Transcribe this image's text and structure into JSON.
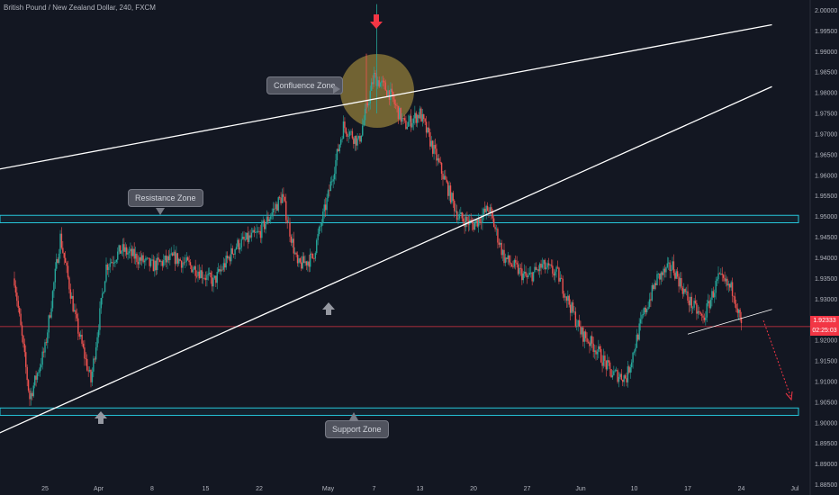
{
  "header": {
    "symbol_title": "British Pound / New Zealand Dollar, 240, FXCM"
  },
  "callouts": {
    "confluence": "Confluence Zone",
    "resistance": "Resistance Zone",
    "support": "Support Zone"
  },
  "price_tag": {
    "price": "1.92333",
    "countdown": "02:25:03"
  },
  "colors": {
    "background": "#131722",
    "bull": "#26a69a",
    "bear": "#ef5350",
    "zone": "#26c6da",
    "trendline": "#ffffff",
    "price_line": "#f23645"
  },
  "chart_data": {
    "type": "candlestick",
    "title": "British Pound / New Zealand Dollar, 240, FXCM",
    "ylim": [
      1.8825,
      2.0025
    ],
    "y_ticks": [
      2.0,
      1.995,
      1.99,
      1.985,
      1.98,
      1.975,
      1.97,
      1.965,
      1.96,
      1.955,
      1.95,
      1.945,
      1.94,
      1.935,
      1.93,
      1.925,
      1.92,
      1.915,
      1.91,
      1.905,
      1.9,
      1.895,
      1.89,
      1.885
    ],
    "x_ticks": [
      "25",
      "Apr",
      "8",
      "15",
      "22",
      "May",
      "7",
      "13",
      "20",
      "27",
      "Jun",
      "10",
      "17",
      "24",
      "Jul"
    ],
    "x_range": [
      "2019-03-21",
      "2019-07-01"
    ],
    "price_path": [
      [
        "2019-03-21",
        1.935
      ],
      [
        "2019-03-23",
        1.906
      ],
      [
        "2019-03-25",
        1.918
      ],
      [
        "2019-03-27",
        1.945
      ],
      [
        "2019-03-29",
        1.925
      ],
      [
        "2019-03-31",
        1.91
      ],
      [
        "2019-04-02",
        1.938
      ],
      [
        "2019-04-04",
        1.942
      ],
      [
        "2019-04-08",
        1.938
      ],
      [
        "2019-04-11",
        1.94
      ],
      [
        "2019-04-14",
        1.937
      ],
      [
        "2019-04-16",
        1.934
      ],
      [
        "2019-04-19",
        1.943
      ],
      [
        "2019-04-22",
        1.946
      ],
      [
        "2019-04-25",
        1.955
      ],
      [
        "2019-04-27",
        1.938
      ],
      [
        "2019-04-29",
        1.94
      ],
      [
        "2019-05-01",
        1.955
      ],
      [
        "2019-05-03",
        1.972
      ],
      [
        "2019-05-05",
        1.968
      ],
      [
        "2019-05-07",
        1.984
      ],
      [
        "2019-05-09",
        1.98
      ],
      [
        "2019-05-11",
        1.972
      ],
      [
        "2019-05-13",
        1.975
      ],
      [
        "2019-05-15",
        1.965
      ],
      [
        "2019-05-18",
        1.95
      ],
      [
        "2019-05-20",
        1.948
      ],
      [
        "2019-05-22",
        1.952
      ],
      [
        "2019-05-24",
        1.94
      ],
      [
        "2019-05-27",
        1.935
      ],
      [
        "2019-05-29",
        1.938
      ],
      [
        "2019-05-31",
        1.936
      ],
      [
        "2019-06-03",
        1.922
      ],
      [
        "2019-06-05",
        1.918
      ],
      [
        "2019-06-07",
        1.912
      ],
      [
        "2019-06-09",
        1.911
      ],
      [
        "2019-06-11",
        1.925
      ],
      [
        "2019-06-13",
        1.935
      ],
      [
        "2019-06-15",
        1.938
      ],
      [
        "2019-06-17",
        1.93
      ],
      [
        "2019-06-19",
        1.925
      ],
      [
        "2019-06-21",
        1.935
      ],
      [
        "2019-06-23",
        1.932
      ],
      [
        "2019-06-24",
        1.9233
      ]
    ],
    "spikes": [
      [
        "2019-05-06",
        1.9895
      ],
      [
        "2019-05-07",
        2.0015
      ]
    ],
    "resistance_zone": [
      1.9485,
      1.9503
    ],
    "support_zone": [
      1.9018,
      1.9036
    ],
    "current_price": 1.92333,
    "trendlines": [
      {
        "from": [
          "2019-03-19",
          1.9615
        ],
        "to": [
          "2019-06-28",
          1.9965
        ]
      },
      {
        "from": [
          "2019-03-19",
          1.8975
        ],
        "to": [
          "2019-06-28",
          1.9815
        ]
      },
      {
        "from": [
          "2019-06-17",
          1.9215
        ],
        "to": [
          "2019-06-28",
          1.9275
        ]
      }
    ],
    "projection": {
      "from": [
        "2019-06-24",
        1.923
      ],
      "to": [
        "2019-06-25",
        1.903
      ]
    }
  }
}
